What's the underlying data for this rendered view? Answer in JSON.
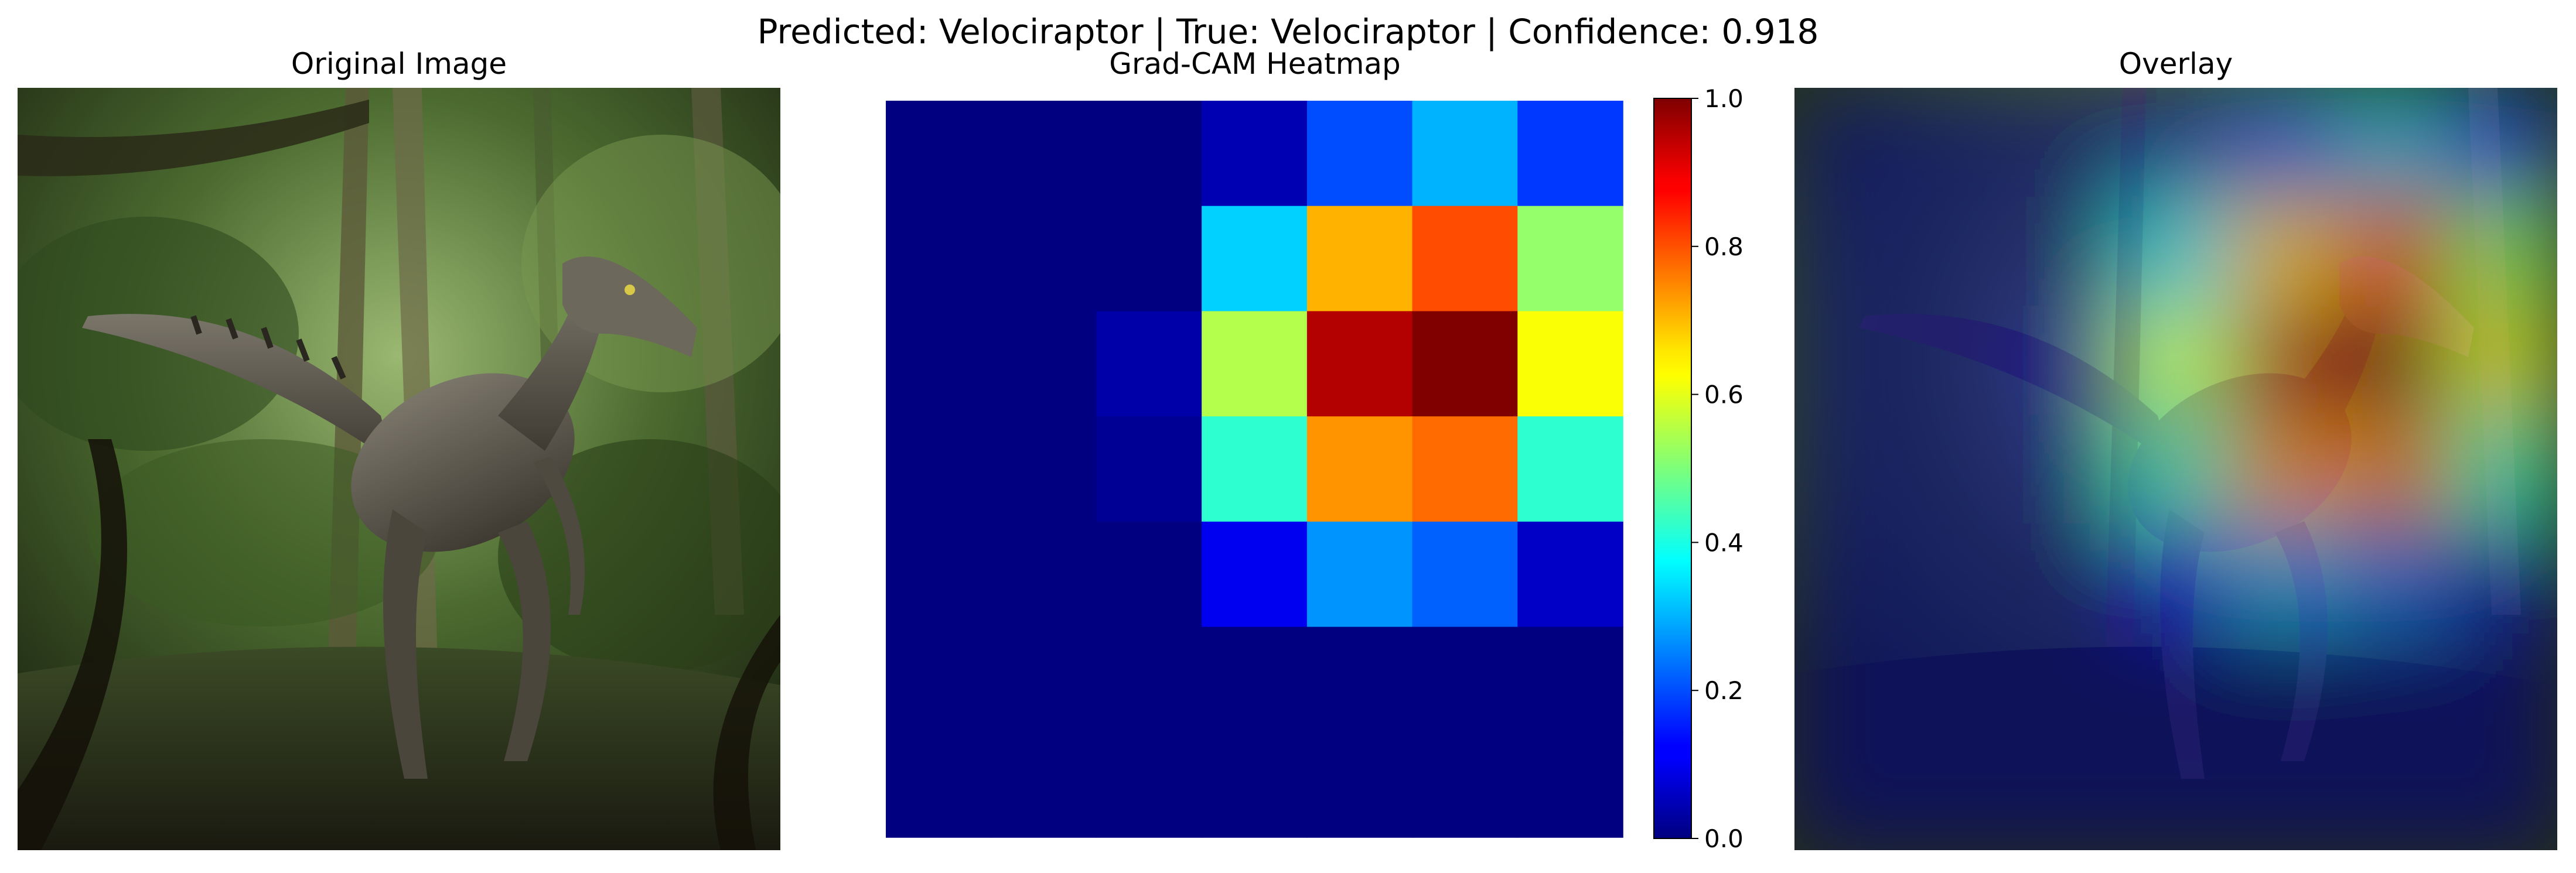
{
  "suptitle": "Predicted: Velociraptor | True: Velociraptor | Confidence: 0.918",
  "panels": {
    "original": {
      "title": "Original Image"
    },
    "heatmap": {
      "title": "Grad-CAM Heatmap"
    },
    "overlay": {
      "title": "Overlay"
    }
  },
  "colors": {
    "jungle_dark": "#1c2414",
    "jungle_mid": "#3d5a2a",
    "jungle_light": "#8aa860",
    "raptor": "#5a554a"
  },
  "chart_data": {
    "type": "heatmap",
    "title": "Grad-CAM Heatmap",
    "colormap": "jet",
    "rows": 7,
    "cols": 7,
    "values": [
      [
        0.0,
        0.0,
        0.0,
        0.05,
        0.2,
        0.3,
        0.18
      ],
      [
        0.0,
        0.0,
        0.0,
        0.33,
        0.7,
        0.8,
        0.52
      ],
      [
        0.0,
        0.0,
        0.04,
        0.55,
        0.95,
        1.0,
        0.62
      ],
      [
        0.0,
        0.0,
        0.02,
        0.42,
        0.73,
        0.77,
        0.42
      ],
      [
        0.0,
        0.0,
        0.0,
        0.11,
        0.27,
        0.22,
        0.07
      ],
      [
        0.0,
        0.0,
        0.0,
        0.0,
        0.0,
        0.0,
        0.0
      ],
      [
        0.0,
        0.0,
        0.0,
        0.0,
        0.0,
        0.0,
        0.0
      ]
    ],
    "colorbar": {
      "vmin": 0.0,
      "vmax": 1.0,
      "ticks": [
        "0.0",
        "0.2",
        "0.4",
        "0.6",
        "0.8",
        "1.0"
      ]
    }
  }
}
